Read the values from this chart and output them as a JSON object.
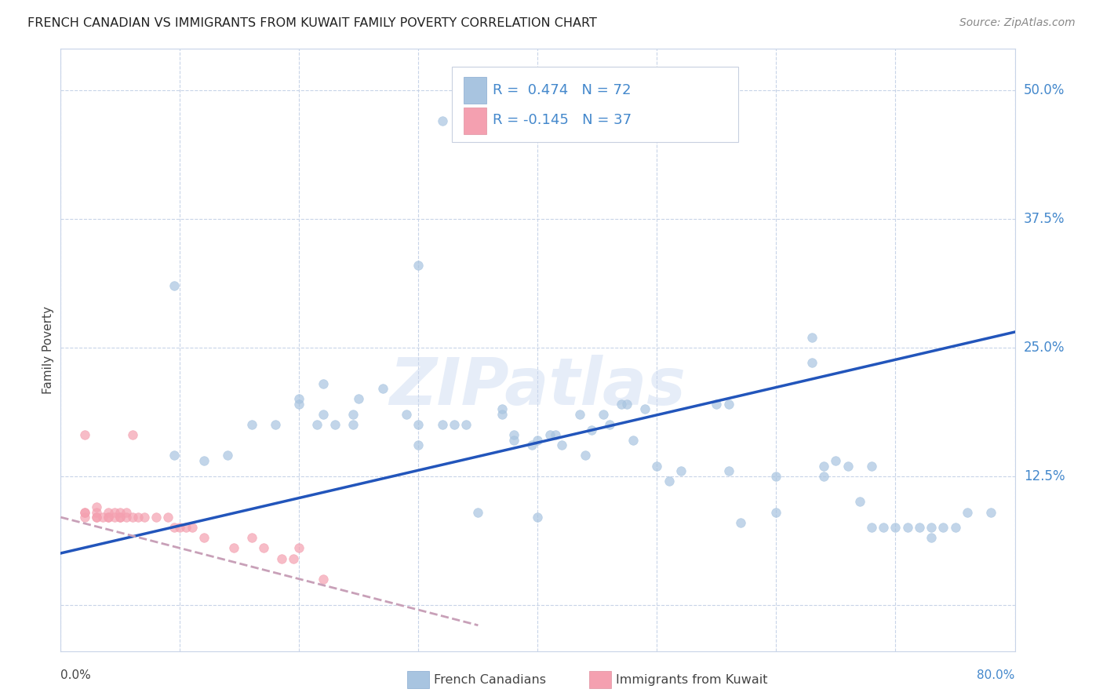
{
  "title": "FRENCH CANADIAN VS IMMIGRANTS FROM KUWAIT FAMILY POVERTY CORRELATION CHART",
  "source": "Source: ZipAtlas.com",
  "ylabel": "Family Poverty",
  "xmin": 0.0,
  "xmax": 0.8,
  "ymin": -0.045,
  "ymax": 0.54,
  "watermark": "ZIPatlas",
  "legend_r1_text": "R =  0.474   N = 72",
  "legend_r2_text": "R = -0.145   N = 37",
  "legend_label1": "French Canadians",
  "legend_label2": "Immigrants from Kuwait",
  "blue_scatter_color": "#a8c4e0",
  "pink_scatter_color": "#f4a0b0",
  "line_blue_color": "#2255bb",
  "line_pink_color": "#c8a0b8",
  "text_blue_color": "#4488cc",
  "grid_color": "#c8d4e8",
  "background_color": "#ffffff",
  "yticks": [
    0.0,
    0.125,
    0.25,
    0.375,
    0.5
  ],
  "ytick_labels": [
    "",
    "12.5%",
    "25.0%",
    "37.5%",
    "50.0%"
  ],
  "blue_line_x": [
    0.0,
    0.8
  ],
  "blue_line_y": [
    0.05,
    0.265
  ],
  "pink_line_x": [
    0.0,
    0.35
  ],
  "pink_line_y": [
    0.085,
    -0.02
  ],
  "blue_scatter_x": [
    0.32,
    0.095,
    0.22,
    0.2,
    0.245,
    0.245,
    0.29,
    0.3,
    0.3,
    0.32,
    0.33,
    0.34,
    0.37,
    0.37,
    0.38,
    0.38,
    0.4,
    0.395,
    0.41,
    0.415,
    0.42,
    0.435,
    0.44,
    0.445,
    0.455,
    0.46,
    0.47,
    0.475,
    0.48,
    0.49,
    0.5,
    0.51,
    0.52,
    0.55,
    0.56,
    0.56,
    0.57,
    0.6,
    0.6,
    0.63,
    0.63,
    0.64,
    0.64,
    0.65,
    0.66,
    0.67,
    0.68,
    0.68,
    0.69,
    0.7,
    0.71,
    0.72,
    0.73,
    0.73,
    0.74,
    0.75,
    0.76,
    0.78,
    0.095,
    0.12,
    0.14,
    0.16,
    0.18,
    0.2,
    0.215,
    0.22,
    0.23,
    0.25,
    0.27,
    0.3,
    0.35,
    0.4
  ],
  "blue_scatter_y": [
    0.47,
    0.31,
    0.215,
    0.195,
    0.175,
    0.185,
    0.185,
    0.175,
    0.155,
    0.175,
    0.175,
    0.175,
    0.185,
    0.19,
    0.165,
    0.16,
    0.16,
    0.155,
    0.165,
    0.165,
    0.155,
    0.185,
    0.145,
    0.17,
    0.185,
    0.175,
    0.195,
    0.195,
    0.16,
    0.19,
    0.135,
    0.12,
    0.13,
    0.195,
    0.13,
    0.195,
    0.08,
    0.125,
    0.09,
    0.26,
    0.235,
    0.125,
    0.135,
    0.14,
    0.135,
    0.1,
    0.135,
    0.075,
    0.075,
    0.075,
    0.075,
    0.075,
    0.065,
    0.075,
    0.075,
    0.075,
    0.09,
    0.09,
    0.145,
    0.14,
    0.145,
    0.175,
    0.175,
    0.2,
    0.175,
    0.185,
    0.175,
    0.2,
    0.21,
    0.33,
    0.09,
    0.085
  ],
  "pink_scatter_x": [
    0.02,
    0.02,
    0.02,
    0.02,
    0.03,
    0.03,
    0.03,
    0.03,
    0.035,
    0.04,
    0.04,
    0.04,
    0.045,
    0.045,
    0.05,
    0.05,
    0.05,
    0.055,
    0.055,
    0.06,
    0.06,
    0.065,
    0.07,
    0.08,
    0.09,
    0.095,
    0.1,
    0.105,
    0.11,
    0.12,
    0.145,
    0.16,
    0.17,
    0.185,
    0.195,
    0.2,
    0.22
  ],
  "pink_scatter_y": [
    0.085,
    0.09,
    0.09,
    0.165,
    0.085,
    0.085,
    0.09,
    0.095,
    0.085,
    0.085,
    0.09,
    0.085,
    0.085,
    0.09,
    0.085,
    0.085,
    0.09,
    0.085,
    0.09,
    0.165,
    0.085,
    0.085,
    0.085,
    0.085,
    0.085,
    0.075,
    0.075,
    0.075,
    0.075,
    0.065,
    0.055,
    0.065,
    0.055,
    0.045,
    0.045,
    0.055,
    0.025
  ]
}
